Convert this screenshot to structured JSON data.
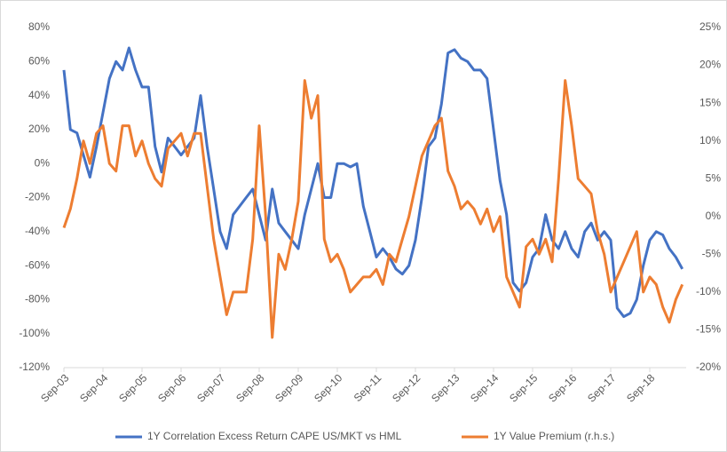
{
  "chart_data": {
    "type": "line",
    "categories": [
      "Sep-03",
      null,
      null,
      null,
      null,
      null,
      "Sep-04",
      null,
      null,
      null,
      null,
      null,
      "Sep-05",
      null,
      null,
      null,
      null,
      null,
      "Sep-06",
      null,
      null,
      null,
      null,
      null,
      "Sep-07",
      null,
      null,
      null,
      null,
      null,
      "Sep-08",
      null,
      null,
      null,
      null,
      null,
      "Sep-09",
      null,
      null,
      null,
      null,
      null,
      "Sep-10",
      null,
      null,
      null,
      null,
      null,
      "Sep-11",
      null,
      null,
      null,
      null,
      null,
      "Sep-12",
      null,
      null,
      null,
      null,
      null,
      "Sep-13",
      null,
      null,
      null,
      null,
      null,
      "Sep-14",
      null,
      null,
      null,
      null,
      null,
      "Sep-15",
      null,
      null,
      null,
      null,
      null,
      "Sep-16",
      null,
      null,
      null,
      null,
      null,
      "Sep-17",
      null,
      null,
      null,
      null,
      null,
      "Sep-18",
      null,
      null,
      null,
      null,
      null
    ],
    "series": [
      {
        "name": "1Y Correlation Excess Return CAPE US/MKT vs HML",
        "color": "#4472c4",
        "values": [
          55,
          20,
          18,
          5,
          -8,
          10,
          30,
          50,
          60,
          55,
          68,
          55,
          45,
          45,
          10,
          -5,
          15,
          10,
          5,
          10,
          15,
          40,
          10,
          -15,
          -40,
          -50,
          -30,
          -25,
          -20,
          -15,
          -30,
          -45,
          -15,
          -35,
          -40,
          -45,
          -50,
          -30,
          -15,
          0,
          -20,
          -20,
          0,
          0,
          -2,
          0,
          -25,
          -40,
          -55,
          -50,
          -55,
          -62,
          -65,
          -60,
          -45,
          -20,
          10,
          15,
          35,
          65,
          67,
          62,
          60,
          55,
          55,
          50,
          20,
          -10,
          -30,
          -70,
          -75,
          -70,
          -55,
          -50,
          -30,
          -45,
          -50,
          -40,
          -50,
          -55,
          -40,
          -35,
          -45,
          -40,
          -45,
          -85,
          -90,
          -88,
          -80,
          -60,
          -45,
          -40,
          -42,
          -50,
          -55,
          -62
        ]
      },
      {
        "name": "1Y Value Premium (r.h.s.)",
        "color": "#ed7d31",
        "axis": "y2",
        "values": [
          -1.5,
          1,
          5,
          10,
          7,
          11,
          12,
          7,
          6,
          12,
          12,
          8,
          10,
          7,
          5,
          4,
          9,
          10,
          11,
          8,
          11,
          11,
          4,
          -3,
          -8,
          -13,
          -10,
          -10,
          -10,
          -3,
          12,
          0,
          -16,
          -5,
          -7,
          -3,
          2,
          18,
          13,
          16,
          -3,
          -6,
          -5,
          -7,
          -10,
          -9,
          -8,
          -8,
          -7,
          -9,
          -5,
          -6,
          -3,
          0,
          4,
          8,
          10,
          12,
          13,
          6,
          4,
          1,
          2,
          1,
          -1,
          1,
          -2,
          0,
          -8,
          -10,
          -12,
          -4,
          -3,
          -5,
          -3,
          -6,
          5,
          18,
          12,
          5,
          4,
          3,
          -2,
          -5,
          -10,
          -8,
          -6,
          -4,
          -2,
          -10,
          -8,
          -9,
          -12,
          -14,
          -11,
          -9
        ]
      }
    ],
    "ylim": [
      -120,
      80
    ],
    "yticks": [
      {
        "value": -120,
        "label": "-120%"
      },
      {
        "value": -100,
        "label": "-100%"
      },
      {
        "value": -80,
        "label": "-80%"
      },
      {
        "value": -60,
        "label": "-60%"
      },
      {
        "value": -40,
        "label": "-40%"
      },
      {
        "value": -20,
        "label": "-20%"
      },
      {
        "value": 0,
        "label": "0%"
      },
      {
        "value": 20,
        "label": "20%"
      },
      {
        "value": 40,
        "label": "40%"
      },
      {
        "value": 60,
        "label": "60%"
      },
      {
        "value": 80,
        "label": "80%"
      }
    ],
    "y2lim": [
      -20,
      25
    ],
    "y2ticks": [
      {
        "value": -20,
        "label": "-20%"
      },
      {
        "value": -15,
        "label": "-15%"
      },
      {
        "value": -10,
        "label": "-10%"
      },
      {
        "value": -5,
        "label": "-5%"
      },
      {
        "value": 0,
        "label": "0%"
      },
      {
        "value": 5,
        "label": "5%"
      },
      {
        "value": 10,
        "label": "10%"
      },
      {
        "value": 15,
        "label": "15%"
      },
      {
        "value": 20,
        "label": "20%"
      },
      {
        "value": 25,
        "label": "25%"
      }
    ],
    "legend": "bottom"
  }
}
